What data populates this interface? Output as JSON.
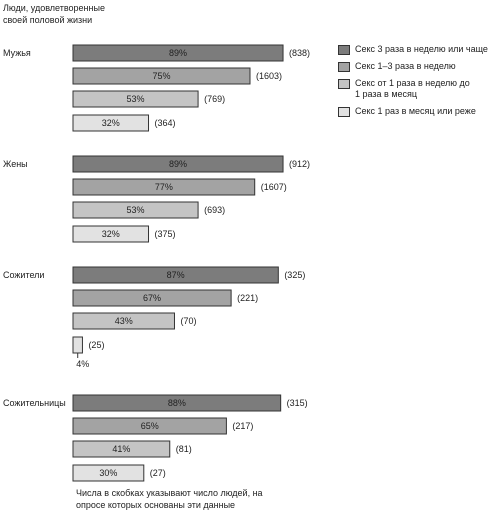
{
  "chart_data": {
    "type": "bar",
    "orientation": "horizontal",
    "title": [
      "Люди, удовлетворенные",
      "своей половой жизни"
    ],
    "groups": [
      {
        "name": "Мужья",
        "values": [
          89,
          75,
          53,
          32
        ],
        "labels": [
          "89%",
          "75%",
          "53%",
          "32%"
        ],
        "counts": [
          "(838)",
          "(1603)",
          "(769)",
          "(364)"
        ]
      },
      {
        "name": "Жены",
        "values": [
          89,
          77,
          53,
          32
        ],
        "labels": [
          "89%",
          "77%",
          "53%",
          "32%"
        ],
        "counts": [
          "(912)",
          "(1607)",
          "(693)",
          "(375)"
        ]
      },
      {
        "name": "Сожители",
        "values": [
          87,
          67,
          43,
          4
        ],
        "labels": [
          "87%",
          "67%",
          "43%",
          "4%"
        ],
        "counts": [
          "(325)",
          "(221)",
          "(70)",
          "(25)"
        ]
      },
      {
        "name": "Сожительницы",
        "values": [
          88,
          65,
          41,
          30
        ],
        "labels": [
          "88%",
          "65%",
          "41%",
          "30%"
        ],
        "counts": [
          "(315)",
          "(217)",
          "(81)",
          "(27)"
        ]
      }
    ],
    "series": [
      {
        "name": "Секс 3 раза в неделю или чаще",
        "color": "#7c7c7c"
      },
      {
        "name": "Секс 1–3 раза в неделю",
        "color": "#a3a3a3"
      },
      {
        "name": "Секс от 1 раза в неделю  до 1 раза в месяц",
        "color": "#c4c4c4"
      },
      {
        "name": "Секс 1 раз в месяц или реже",
        "color": "#e2e2e2"
      }
    ],
    "xlim": [
      0,
      100
    ],
    "legend_position": "top-right",
    "grid": false
  },
  "legend_lines": [
    [
      "Секс 3 раза в неделю или чаще"
    ],
    [
      "Секс 1–3 раза в неделю"
    ],
    [
      "Секс от 1 раза в неделю  до",
      "1 раза в месяц"
    ],
    [
      "Секс 1 раз в месяц или реже"
    ]
  ],
  "footnote": [
    "Числа в скобках указывают число людей, на",
    "опросе которых основаны эти данные"
  ]
}
